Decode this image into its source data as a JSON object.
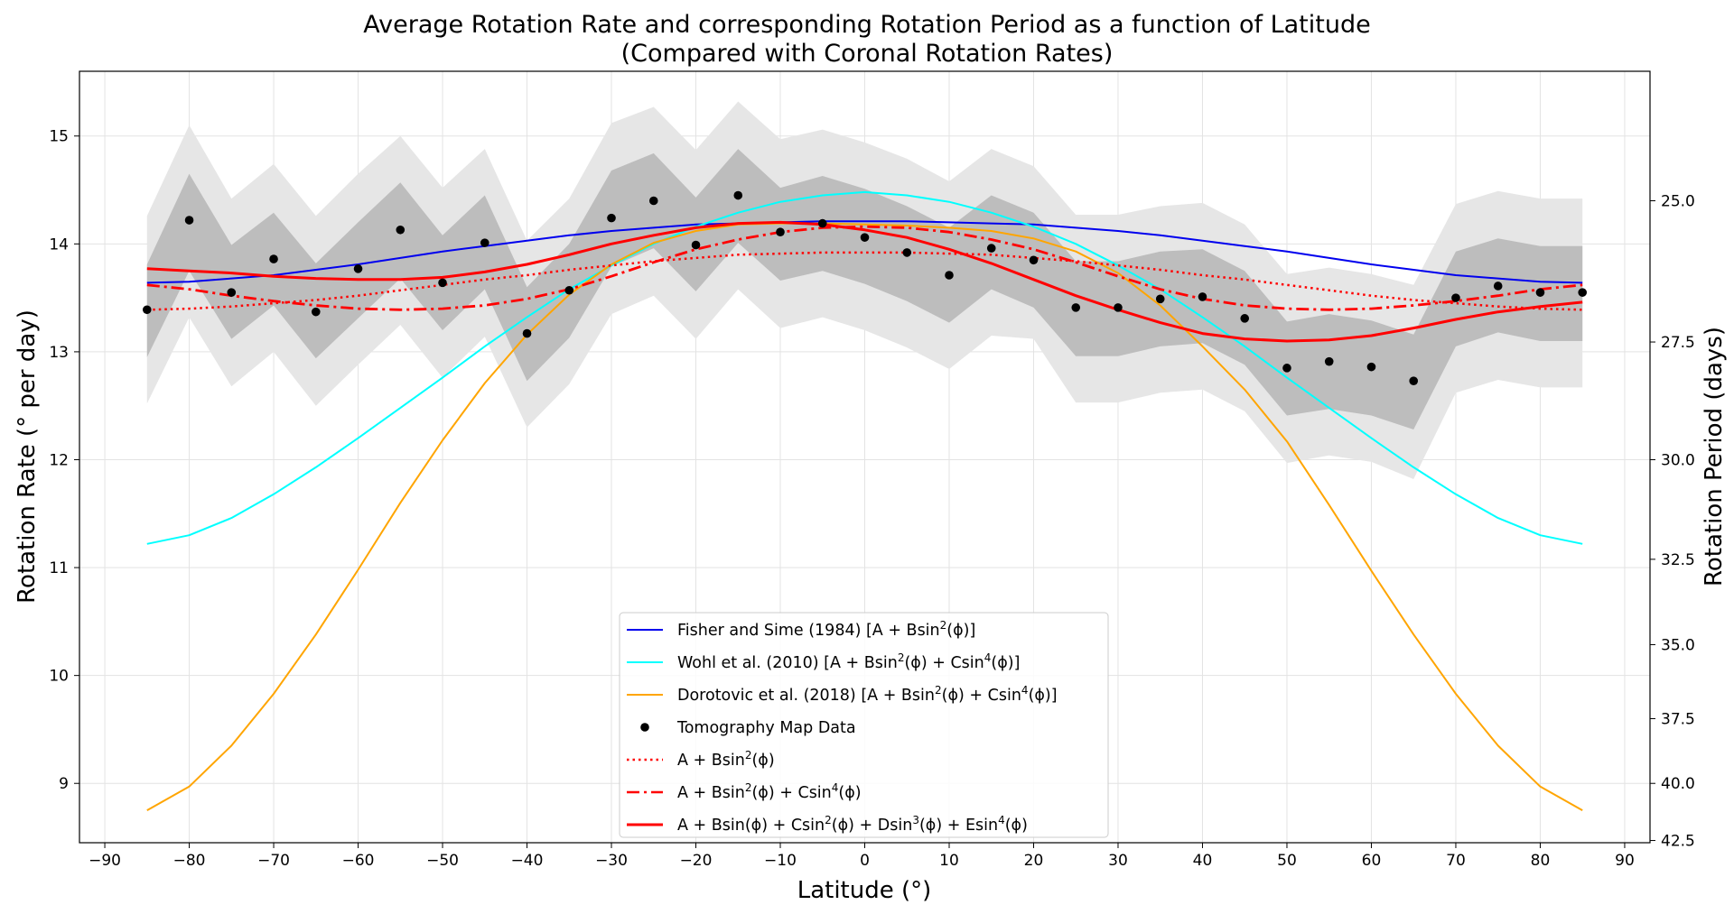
{
  "chart_data": {
    "type": "line",
    "title": "Average Rotation Rate and corresponding Rotation Period as a function of Latitude",
    "subtitle": "(Compared with Coronal Rotation Rates)",
    "xlabel": "Latitude (°)",
    "ylabel": "Rotation Rate (° per day)",
    "y2label": "Rotation Period (days)",
    "xlim": [
      -93,
      93
    ],
    "ylim": [
      8.45,
      15.6
    ],
    "grid": true,
    "xticks": [
      -90,
      -80,
      -70,
      -60,
      -50,
      -40,
      -30,
      -20,
      -10,
      0,
      10,
      20,
      30,
      40,
      50,
      60,
      70,
      80,
      90
    ],
    "xtick_labels": [
      "−90",
      "−80",
      "−70",
      "−60",
      "−50",
      "−40",
      "−30",
      "−20",
      "−10",
      "0",
      "10",
      "20",
      "30",
      "40",
      "50",
      "60",
      "70",
      "80",
      "90"
    ],
    "yticks": [
      9,
      10,
      11,
      12,
      13,
      14,
      15
    ],
    "ytick_labels": [
      "9",
      "10",
      "11",
      "12",
      "13",
      "14",
      "15"
    ],
    "y2ticks": [
      25.0,
      27.5,
      30.0,
      32.5,
      35.0,
      37.5,
      40.0,
      42.5
    ],
    "y2tick_labels": [
      "25.0",
      "27.5",
      "30.0",
      "32.5",
      "35.0",
      "37.5",
      "40.0",
      "42.5"
    ],
    "x": [
      -85,
      -80,
      -75,
      -70,
      -65,
      -60,
      -55,
      -50,
      -45,
      -40,
      -35,
      -30,
      -25,
      -20,
      -15,
      -10,
      -5,
      0,
      5,
      10,
      15,
      20,
      25,
      30,
      35,
      40,
      45,
      50,
      55,
      60,
      65,
      70,
      75,
      80,
      85
    ],
    "bands": [
      {
        "name": "outer-band",
        "color": "#e6e6e6",
        "lower": [
          12.52,
          13.32,
          12.68,
          13.0,
          12.5,
          12.88,
          13.25,
          12.76,
          13.14,
          12.3,
          12.7,
          13.35,
          13.52,
          13.12,
          13.58,
          13.22,
          13.32,
          13.2,
          13.04,
          12.84,
          13.15,
          13.12,
          12.53,
          12.53,
          12.62,
          12.65,
          12.45,
          11.97,
          12.04,
          11.98,
          11.82,
          12.62,
          12.74,
          12.67,
          12.67
        ],
        "upper": [
          14.26,
          15.1,
          14.42,
          14.74,
          14.26,
          14.65,
          15.0,
          14.52,
          14.88,
          14.03,
          14.42,
          15.12,
          15.27,
          14.87,
          15.32,
          14.97,
          15.06,
          14.94,
          14.79,
          14.58,
          14.88,
          14.72,
          14.27,
          14.27,
          14.35,
          14.38,
          14.18,
          13.72,
          13.78,
          13.72,
          13.62,
          14.37,
          14.49,
          14.42,
          14.42
        ]
      },
      {
        "name": "inner-band",
        "color": "#bdbdbd",
        "lower": [
          12.95,
          13.75,
          13.12,
          13.43,
          12.94,
          13.31,
          13.68,
          13.2,
          13.58,
          12.73,
          13.13,
          13.79,
          13.96,
          13.56,
          14.01,
          13.66,
          13.75,
          13.63,
          13.47,
          13.27,
          13.58,
          13.41,
          12.96,
          12.96,
          13.05,
          13.08,
          12.88,
          12.41,
          12.47,
          12.41,
          12.28,
          13.05,
          13.18,
          13.1,
          13.1
        ],
        "upper": [
          13.81,
          14.65,
          13.99,
          14.29,
          13.82,
          14.2,
          14.57,
          14.08,
          14.45,
          13.6,
          14.0,
          14.68,
          14.84,
          14.43,
          14.88,
          14.52,
          14.63,
          14.51,
          14.35,
          14.15,
          14.45,
          14.29,
          13.84,
          13.84,
          13.93,
          13.95,
          13.75,
          13.28,
          13.35,
          13.29,
          13.16,
          13.93,
          14.05,
          13.98,
          13.98
        ]
      }
    ],
    "series": [
      {
        "name": "Fisher and Sime (1984) [A + Bsin²(ϕ)]",
        "color": "#0000ee",
        "style": "solid",
        "width": 2,
        "values": [
          13.64,
          13.65,
          13.68,
          13.71,
          13.76,
          13.81,
          13.87,
          13.93,
          13.98,
          14.03,
          14.08,
          14.12,
          14.15,
          14.18,
          14.19,
          14.2,
          14.21,
          14.21,
          14.21,
          14.2,
          14.19,
          14.18,
          14.15,
          14.12,
          14.08,
          14.03,
          13.98,
          13.93,
          13.87,
          13.81,
          13.76,
          13.71,
          13.68,
          13.65,
          13.64
        ]
      },
      {
        "name": "Wohl et al. (2010) [A + Bsin²(ϕ) + Csin⁴(ϕ)]",
        "color": "#00ffff",
        "style": "solid",
        "width": 2,
        "values": [
          11.22,
          11.3,
          11.46,
          11.68,
          11.93,
          12.2,
          12.48,
          12.76,
          13.05,
          13.32,
          13.58,
          13.8,
          14.0,
          14.16,
          14.29,
          14.39,
          14.45,
          14.48,
          14.45,
          14.39,
          14.29,
          14.16,
          14.0,
          13.8,
          13.58,
          13.32,
          13.05,
          12.76,
          12.48,
          12.2,
          11.93,
          11.68,
          11.46,
          11.3,
          11.22
        ]
      },
      {
        "name": "Dorotovic et al. (2018) [A + Bsin²(ϕ) + Csin⁴(ϕ)]",
        "color": "#ffa500",
        "style": "solid",
        "width": 2,
        "values": [
          8.75,
          8.97,
          9.35,
          9.83,
          10.38,
          10.98,
          11.6,
          12.18,
          12.71,
          13.16,
          13.53,
          13.81,
          14.01,
          14.12,
          14.18,
          14.19,
          14.19,
          14.18,
          14.17,
          14.15,
          14.12,
          14.05,
          13.93,
          13.73,
          13.43,
          13.05,
          12.65,
          12.17,
          11.58,
          10.97,
          10.38,
          9.83,
          9.35,
          8.97,
          8.75
        ]
      },
      {
        "name": "A + Bsin²(ϕ)",
        "color": "#ff0000",
        "style": "dotted",
        "width": 2.5,
        "values": [
          13.39,
          13.4,
          13.42,
          13.45,
          13.48,
          13.52,
          13.57,
          13.62,
          13.67,
          13.71,
          13.76,
          13.8,
          13.84,
          13.87,
          13.9,
          13.91,
          13.92,
          13.92,
          13.92,
          13.91,
          13.9,
          13.87,
          13.84,
          13.8,
          13.76,
          13.71,
          13.67,
          13.62,
          13.57,
          13.52,
          13.48,
          13.45,
          13.42,
          13.4,
          13.39
        ]
      },
      {
        "name": "A + Bsin²(ϕ) + Csin⁴(ϕ)",
        "color": "#ff0000",
        "style": "dashdot",
        "width": 2.8,
        "values": [
          13.62,
          13.58,
          13.52,
          13.47,
          13.43,
          13.4,
          13.39,
          13.4,
          13.43,
          13.49,
          13.58,
          13.7,
          13.83,
          13.95,
          14.04,
          14.11,
          14.15,
          14.16,
          14.15,
          14.11,
          14.04,
          13.95,
          13.83,
          13.7,
          13.58,
          13.49,
          13.43,
          13.4,
          13.39,
          13.4,
          13.43,
          13.47,
          13.52,
          13.58,
          13.62
        ]
      },
      {
        "name": "A + Bsin(ϕ) + Csin²(ϕ) + Dsin³(ϕ) + Esin⁴(ϕ)",
        "color": "#ff0000",
        "style": "solid",
        "width": 3,
        "values": [
          13.77,
          13.75,
          13.73,
          13.7,
          13.68,
          13.67,
          13.67,
          13.69,
          13.74,
          13.81,
          13.9,
          14.0,
          14.08,
          14.15,
          14.19,
          14.2,
          14.18,
          14.13,
          14.06,
          13.95,
          13.82,
          13.67,
          13.52,
          13.39,
          13.27,
          13.17,
          13.12,
          13.1,
          13.11,
          13.15,
          13.22,
          13.3,
          13.37,
          13.42,
          13.46
        ]
      }
    ],
    "scatter": {
      "name": "Tomography Map Data",
      "color": "#000000",
      "values": [
        13.39,
        14.22,
        13.55,
        13.86,
        13.37,
        13.77,
        14.13,
        13.64,
        14.01,
        13.17,
        13.57,
        14.24,
        14.4,
        13.99,
        14.45,
        14.11,
        14.19,
        14.06,
        13.92,
        13.71,
        13.96,
        13.85,
        13.41,
        13.41,
        13.49,
        13.51,
        13.31,
        12.85,
        12.91,
        12.86,
        12.73,
        13.5,
        13.61,
        13.55,
        13.55
      ]
    },
    "legend": {
      "position": "lower center",
      "entries": [
        {
          "label_main": "Fisher and Sime (1984) [A + Bsin",
          "sup": "2",
          "label_tail": "(ϕ)]",
          "color": "#0000ee",
          "kind": "solid"
        },
        {
          "label_main": "Wohl et al. (2010) [A + Bsin",
          "sup": "2",
          "label_mid": "(ϕ) + Csin",
          "sup2": "4",
          "label_tail": "(ϕ)]",
          "color": "#00ffff",
          "kind": "solid"
        },
        {
          "label_main": "Dorotovic et al. (2018) [A + Bsin",
          "sup": "2",
          "label_mid": "(ϕ) + Csin",
          "sup2": "4",
          "label_tail": "(ϕ)]",
          "color": "#ffa500",
          "kind": "solid"
        },
        {
          "label_main": "Tomography Map Data",
          "color": "#000000",
          "kind": "dot"
        },
        {
          "label_main": "A + Bsin",
          "sup": "2",
          "label_tail": "(ϕ)",
          "color": "#ff0000",
          "kind": "dotted"
        },
        {
          "label_main": "A + Bsin",
          "sup": "2",
          "label_mid": "(ϕ) + Csin",
          "sup2": "4",
          "label_tail": "(ϕ)",
          "color": "#ff0000",
          "kind": "dashdot"
        },
        {
          "label_main": "A + Bsin(ϕ) + Csin",
          "sup": "2",
          "label_mid": "(ϕ) + Dsin",
          "sup2": "3",
          "label_mid2": "(ϕ) + Esin",
          "sup3": "4",
          "label_tail": "(ϕ)",
          "color": "#ff0000",
          "kind": "solid-thick"
        }
      ]
    }
  }
}
